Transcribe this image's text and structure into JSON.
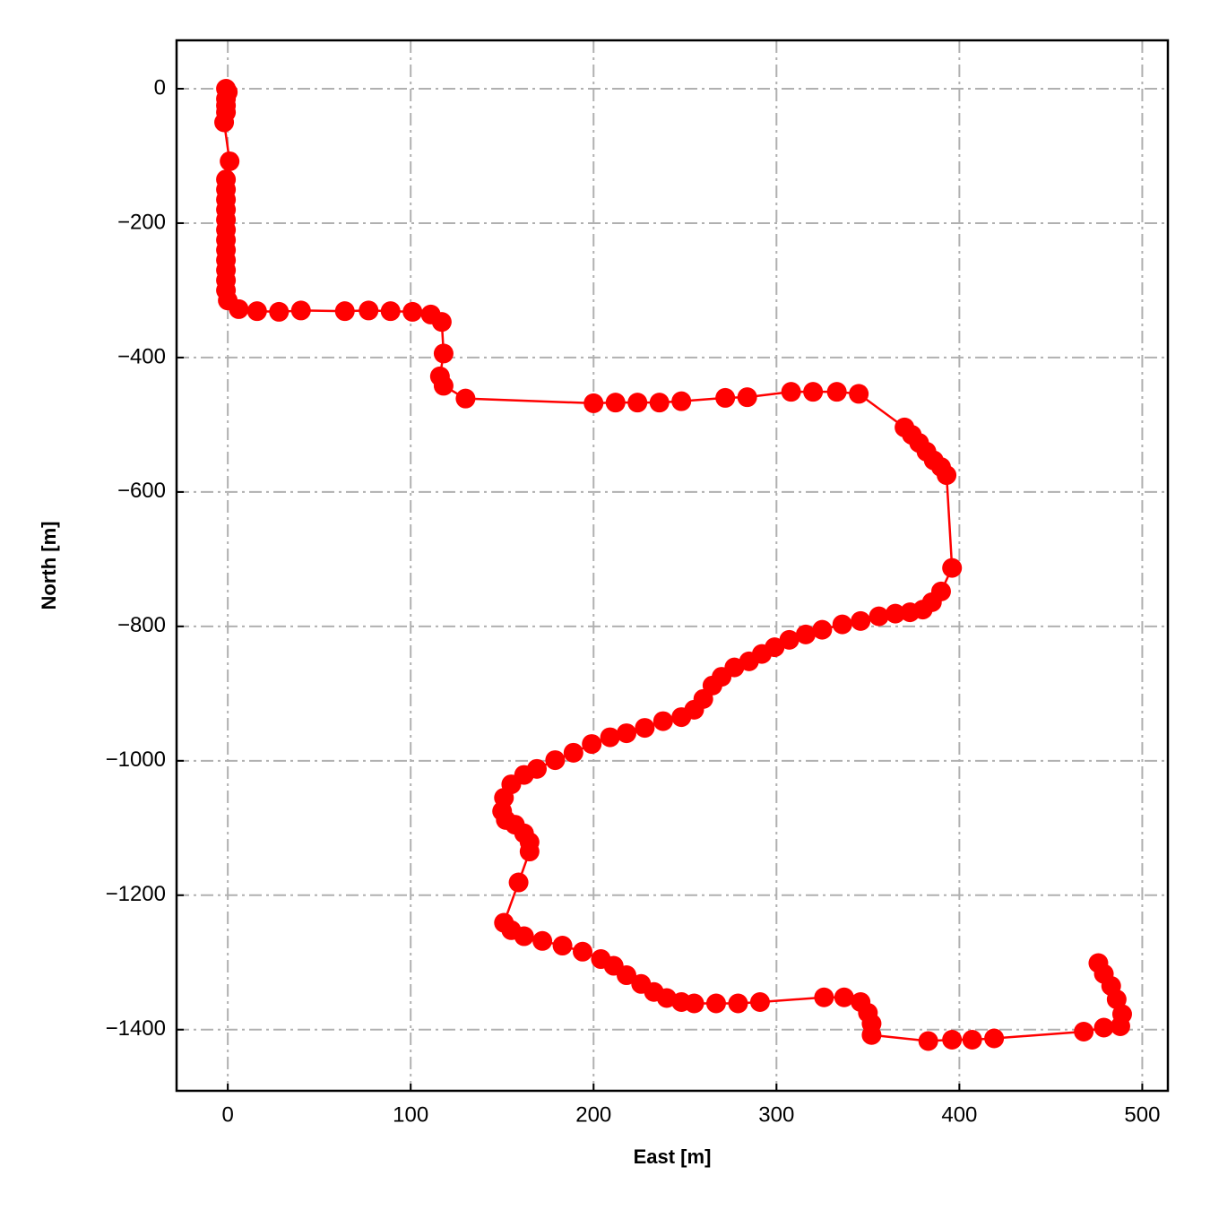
{
  "chart_data": {
    "type": "line",
    "x_label": "East [m]",
    "y_label": "North [m]",
    "color": "#ff0000",
    "grid": true,
    "markers": true,
    "xlim": [
      -28,
      514
    ],
    "ylim": [
      -1491,
      72
    ],
    "xticks": [
      0,
      100,
      200,
      300,
      400,
      500
    ],
    "yticks": [
      {
        "value": 0,
        "label": "0"
      },
      {
        "value": -200,
        "label": "−200"
      },
      {
        "value": -400,
        "label": "−400"
      },
      {
        "value": -600,
        "label": "−600"
      },
      {
        "value": -800,
        "label": "−800"
      },
      {
        "value": -1000,
        "label": "−1000"
      },
      {
        "value": -1200,
        "label": "−1200"
      },
      {
        "value": -1400,
        "label": "−1400"
      }
    ],
    "x": [
      -1,
      0,
      -1,
      -1,
      -1,
      -2,
      1,
      -1,
      -1,
      -1,
      -1,
      -1,
      -1,
      -1,
      -1,
      -1,
      -1,
      -1,
      -1,
      0,
      6,
      16,
      28,
      40,
      64,
      77,
      89,
      101,
      111,
      117,
      118,
      116,
      118,
      130,
      200,
      212,
      224,
      236,
      248,
      272,
      284,
      308,
      320,
      333,
      345,
      370,
      374,
      378,
      382,
      386,
      390,
      393,
      396,
      390,
      385,
      380,
      373,
      365,
      356,
      346,
      336,
      325,
      316,
      307,
      299,
      292,
      285,
      277,
      270,
      265,
      260,
      255,
      248,
      238,
      228,
      218,
      209,
      199,
      189,
      179,
      169,
      162,
      155,
      151,
      150,
      152,
      157,
      162,
      165,
      165,
      159,
      151,
      155,
      162,
      172,
      183,
      194,
      204,
      211,
      218,
      226,
      233,
      240,
      248,
      255,
      267,
      279,
      291,
      326,
      337,
      346,
      350,
      352,
      352,
      383,
      396,
      407,
      419,
      468,
      479,
      488,
      489,
      486,
      483,
      479,
      476
    ],
    "values": [
      0,
      -5,
      -15,
      -25,
      -35,
      -50,
      -108,
      -135,
      -150,
      -165,
      -180,
      -195,
      -210,
      -225,
      -240,
      -255,
      -270,
      -285,
      -300,
      -315,
      -328,
      -331,
      -332,
      -330,
      -331,
      -330,
      -331,
      -332,
      -336,
      -347,
      -394,
      -428,
      -442,
      -461,
      -468,
      -467,
      -467,
      -467,
      -465,
      -460,
      -459,
      -451,
      -451,
      -451,
      -454,
      -504,
      -515,
      -527,
      -540,
      -553,
      -563,
      -575,
      -713,
      -748,
      -764,
      -775,
      -779,
      -781,
      -785,
      -792,
      -797,
      -805,
      -812,
      -820,
      -831,
      -841,
      -852,
      -861,
      -875,
      -888,
      -908,
      -924,
      -935,
      -941,
      -951,
      -959,
      -965,
      -975,
      -988,
      -999,
      -1012,
      -1021,
      -1035,
      -1055,
      -1075,
      -1088,
      -1095,
      -1108,
      -1121,
      -1135,
      -1181,
      -1241,
      -1252,
      -1261,
      -1268,
      -1275,
      -1284,
      -1295,
      -1305,
      -1319,
      -1332,
      -1344,
      -1353,
      -1359,
      -1361,
      -1361,
      -1361,
      -1359,
      -1352,
      -1352,
      -1359,
      -1375,
      -1391,
      -1408,
      -1417,
      -1415,
      -1415,
      -1413,
      -1403,
      -1397,
      -1395,
      -1377,
      -1355,
      -1335,
      -1317,
      -1301
    ]
  }
}
